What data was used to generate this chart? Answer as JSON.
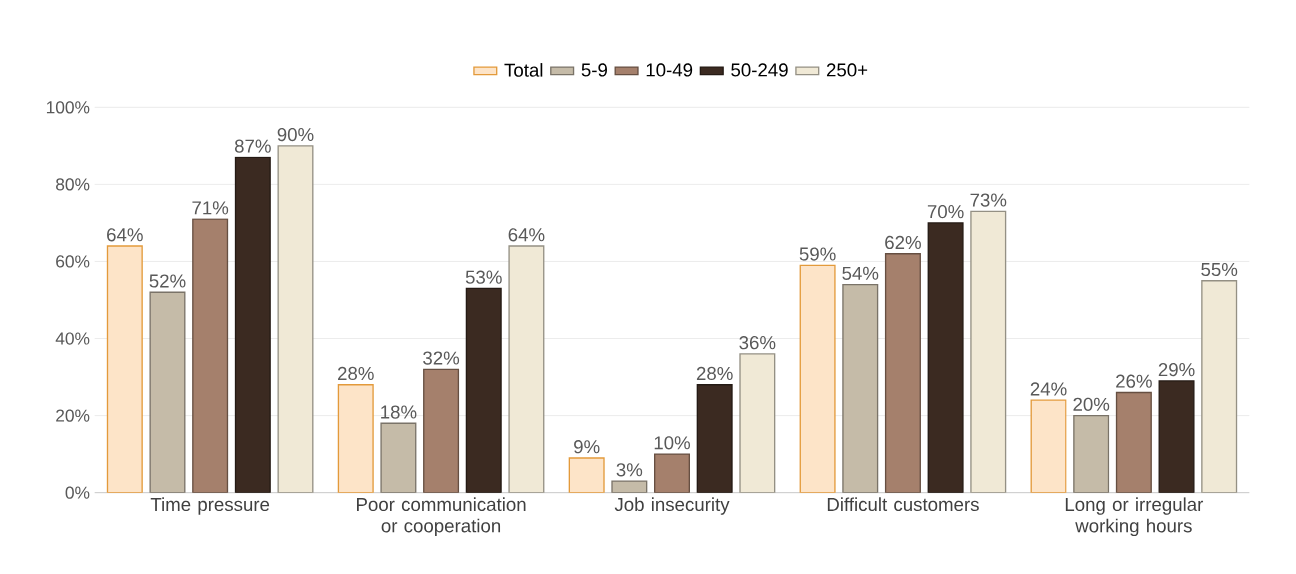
{
  "chart_data": {
    "type": "bar",
    "categories": [
      "Time pressure",
      "Poor communication or cooperation",
      "Job insecurity",
      "Difficult customers",
      "Long or irregular working hours"
    ],
    "series": [
      {
        "name": "Total",
        "color": "#fde4c8",
        "values": [
          64,
          28,
          9,
          59,
          24
        ],
        "value_labels": [
          "64%",
          "28%",
          "9%",
          "59%",
          "24%"
        ]
      },
      {
        "name": "5-9",
        "color": "#c5bba8",
        "values": [
          52,
          18,
          3,
          54,
          20
        ],
        "value_labels": [
          "52%",
          "18%",
          "3%",
          "54%",
          "20%"
        ]
      },
      {
        "name": "10-49",
        "color": "#a5806c",
        "values": [
          71,
          32,
          10,
          62,
          26
        ],
        "value_labels": [
          "71%",
          "32%",
          "10%",
          "62%",
          "26%"
        ]
      },
      {
        "name": "50-249",
        "color": "#3b2a21",
        "values": [
          87,
          53,
          28,
          70,
          29
        ],
        "value_labels": [
          "87%",
          "53%",
          "28%",
          "70%",
          "29%"
        ]
      },
      {
        "name": "250+",
        "color": "#f0e9d6",
        "values": [
          90,
          64,
          36,
          73,
          55
        ],
        "value_labels": [
          "90%",
          "64%",
          "36%",
          "73%",
          "55%"
        ]
      }
    ],
    "ylim": [
      0,
      100
    ],
    "yticks": [
      {
        "value": 0,
        "label": "0%"
      },
      {
        "value": 20,
        "label": "20%"
      },
      {
        "value": 40,
        "label": "40%"
      },
      {
        "value": 60,
        "label": "60%"
      },
      {
        "value": 80,
        "label": "80%"
      },
      {
        "value": 100,
        "label": "100%"
      }
    ],
    "grid": "y",
    "legend": "top"
  }
}
